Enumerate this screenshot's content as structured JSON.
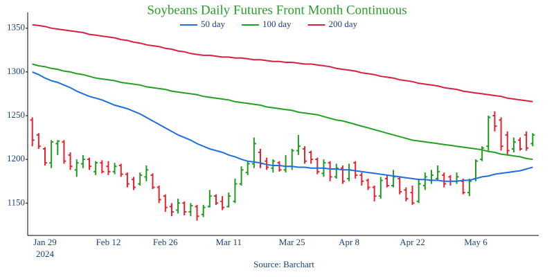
{
  "chart_data": {
    "type": "ohlc",
    "title": "Soybeans Daily Futures Front Month Continuous",
    "source": "Source: Barchart",
    "year_label": "2024",
    "categories": [
      null,
      null,
      "Jan 29",
      null,
      null,
      null,
      null,
      null,
      null,
      null,
      null,
      null,
      "Feb 12",
      null,
      null,
      null,
      null,
      null,
      null,
      null,
      null,
      "Feb 26",
      null,
      null,
      null,
      null,
      null,
      null,
      null,
      null,
      null,
      "Mar 11",
      null,
      null,
      null,
      null,
      null,
      null,
      null,
      null,
      null,
      "Mar 25",
      null,
      null,
      null,
      null,
      null,
      null,
      null,
      null,
      "Apr 8",
      null,
      null,
      null,
      null,
      null,
      null,
      null,
      null,
      null,
      "Apr 22",
      null,
      null,
      null,
      null,
      null,
      null,
      null,
      null,
      null,
      "May 6",
      null,
      null,
      null,
      null,
      null,
      null,
      null,
      null,
      null
    ],
    "ohlc": {
      "up_color": "#1f9a1f",
      "down_color": "#e8202c",
      "open": [
        1245,
        1228,
        1212,
        1196,
        1218,
        1220,
        1205,
        1188,
        1195,
        1200,
        1186,
        1196,
        1192,
        1186,
        1193,
        1183,
        1177,
        1172,
        1180,
        1182,
        1168,
        1158,
        1146,
        1142,
        1150,
        1140,
        1146,
        1137,
        1146,
        1158,
        1152,
        1146,
        1152,
        1172,
        1185,
        1195,
        1208,
        1198,
        1190,
        1196,
        1188,
        1192,
        1210,
        1212,
        1208,
        1200,
        1184,
        1196,
        1180,
        1190,
        1178,
        1196,
        1182,
        1176,
        1168,
        1158,
        1178,
        1170,
        1178,
        1165,
        1162,
        1152,
        1170,
        1176,
        1178,
        1182,
        1180,
        1175,
        1175,
        1162,
        1178,
        1200,
        1215,
        1250,
        1245,
        1228,
        1212,
        1222,
        1228,
        1218
      ],
      "high": [
        1248,
        1230,
        1214,
        1222,
        1222,
        1222,
        1208,
        1200,
        1205,
        1202,
        1198,
        1199,
        1198,
        1196,
        1195,
        1185,
        1180,
        1185,
        1193,
        1184,
        1170,
        1160,
        1150,
        1155,
        1152,
        1150,
        1148,
        1148,
        1165,
        1160,
        1158,
        1162,
        1178,
        1192,
        1198,
        1225,
        1212,
        1202,
        1200,
        1198,
        1205,
        1212,
        1228,
        1215,
        1210,
        1202,
        1200,
        1198,
        1195,
        1193,
        1195,
        1198,
        1185,
        1178,
        1170,
        1180,
        1182,
        1188,
        1180,
        1168,
        1170,
        1178,
        1185,
        1188,
        1193,
        1185,
        1182,
        1185,
        1178,
        1178,
        1200,
        1215,
        1250,
        1255,
        1248,
        1232,
        1225,
        1225,
        1232,
        1230
      ],
      "low": [
        1215,
        1212,
        1193,
        1190,
        1205,
        1195,
        1188,
        1180,
        1190,
        1188,
        1182,
        1184,
        1182,
        1183,
        1180,
        1168,
        1165,
        1170,
        1175,
        1166,
        1150,
        1140,
        1135,
        1138,
        1136,
        1135,
        1130,
        1134,
        1145,
        1148,
        1142,
        1145,
        1150,
        1170,
        1182,
        1190,
        1190,
        1188,
        1185,
        1186,
        1185,
        1188,
        1205,
        1195,
        1195,
        1183,
        1180,
        1175,
        1178,
        1172,
        1175,
        1178,
        1170,
        1165,
        1152,
        1155,
        1168,
        1168,
        1160,
        1152,
        1148,
        1150,
        1165,
        1172,
        1176,
        1168,
        1170,
        1172,
        1160,
        1158,
        1175,
        1198,
        1210,
        1232,
        1210,
        1205,
        1208,
        1210,
        1210,
        1215
      ],
      "close": [
        1222,
        1215,
        1196,
        1220,
        1221,
        1198,
        1192,
        1196,
        1200,
        1192,
        1196,
        1186,
        1186,
        1192,
        1183,
        1172,
        1168,
        1182,
        1188,
        1168,
        1154,
        1145,
        1140,
        1150,
        1140,
        1147,
        1135,
        1145,
        1158,
        1150,
        1145,
        1158,
        1172,
        1188,
        1195,
        1218,
        1195,
        1191,
        1198,
        1188,
        1192,
        1210,
        1215,
        1198,
        1200,
        1186,
        1196,
        1180,
        1190,
        1175,
        1188,
        1182,
        1175,
        1168,
        1158,
        1176,
        1170,
        1180,
        1163,
        1155,
        1150,
        1172,
        1180,
        1182,
        1186,
        1172,
        1175,
        1180,
        1162,
        1175,
        1198,
        1213,
        1248,
        1238,
        1215,
        1210,
        1220,
        1212,
        1213,
        1228
      ]
    },
    "series": [
      {
        "name": "50 day",
        "color": "#1f6fd8",
        "values": [
          1300,
          1297,
          1293,
          1290,
          1288,
          1285,
          1282,
          1278,
          1275,
          1272,
          1270,
          1268,
          1265,
          1262,
          1260,
          1258,
          1255,
          1252,
          1248,
          1244,
          1240,
          1236,
          1232,
          1228,
          1225,
          1222,
          1218,
          1215,
          1212,
          1210,
          1208,
          1205,
          1203,
          1200,
          1198,
          1197,
          1196,
          1194,
          1193,
          1193,
          1192,
          1192,
          1191,
          1191,
          1190,
          1190,
          1190,
          1189,
          1189,
          1188,
          1188,
          1187,
          1186,
          1185,
          1184,
          1183,
          1182,
          1181,
          1180,
          1179,
          1178,
          1177,
          1177,
          1176,
          1176,
          1175,
          1175,
          1175,
          1176,
          1176,
          1178,
          1180,
          1181,
          1183,
          1184,
          1185,
          1186,
          1187,
          1189,
          1191
        ]
      },
      {
        "name": "100 day",
        "color": "#22a022",
        "values": [
          1309,
          1307,
          1306,
          1304,
          1303,
          1301,
          1300,
          1298,
          1297,
          1295,
          1293,
          1292,
          1291,
          1290,
          1288,
          1287,
          1286,
          1285,
          1283,
          1282,
          1281,
          1280,
          1278,
          1277,
          1276,
          1275,
          1274,
          1272,
          1271,
          1270,
          1269,
          1268,
          1266,
          1265,
          1264,
          1263,
          1262,
          1260,
          1259,
          1258,
          1257,
          1256,
          1254,
          1253,
          1252,
          1251,
          1249,
          1247,
          1245,
          1244,
          1242,
          1240,
          1238,
          1236,
          1234,
          1232,
          1230,
          1228,
          1226,
          1224,
          1222,
          1221,
          1220,
          1219,
          1218,
          1217,
          1216,
          1215,
          1214,
          1213,
          1212,
          1211,
          1209,
          1208,
          1206,
          1205,
          1204,
          1203,
          1201,
          1200
        ]
      },
      {
        "name": "200 day",
        "color": "#d62040",
        "values": [
          1354,
          1353,
          1352,
          1350,
          1349,
          1348,
          1347,
          1346,
          1345,
          1343,
          1342,
          1341,
          1340,
          1339,
          1337,
          1336,
          1334,
          1333,
          1331,
          1330,
          1329,
          1327,
          1326,
          1324,
          1323,
          1321,
          1320,
          1319,
          1319,
          1318,
          1317,
          1317,
          1316,
          1316,
          1315,
          1314,
          1314,
          1313,
          1312,
          1312,
          1311,
          1311,
          1310,
          1309,
          1309,
          1308,
          1307,
          1306,
          1304,
          1303,
          1302,
          1301,
          1299,
          1298,
          1297,
          1295,
          1294,
          1293,
          1291,
          1290,
          1289,
          1287,
          1286,
          1285,
          1284,
          1282,
          1281,
          1280,
          1278,
          1277,
          1276,
          1275,
          1274,
          1273,
          1272,
          1270,
          1269,
          1268,
          1267,
          1266
        ]
      }
    ],
    "ylim": [
      1113,
      1368
    ],
    "yticks": [
      1150,
      1200,
      1250,
      1300,
      1350
    ],
    "grid": false,
    "legend": "top"
  }
}
